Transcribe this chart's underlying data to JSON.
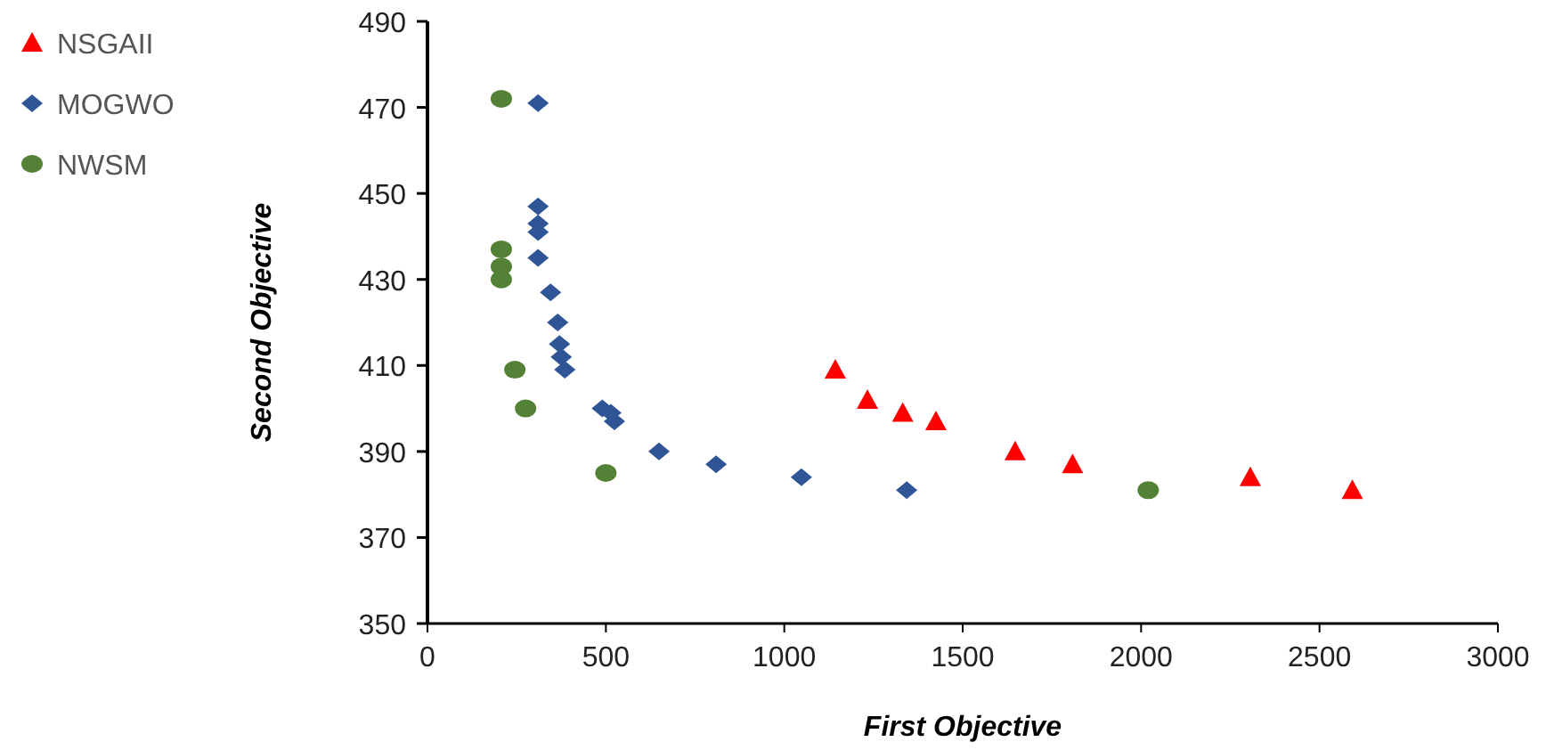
{
  "chart_data": {
    "type": "scatter",
    "xlabel": "First Objective",
    "ylabel": "Second Objective",
    "xlim": [
      0,
      3000
    ],
    "xticks": [
      0,
      500,
      1000,
      1500,
      2000,
      2500,
      3000
    ],
    "ylim": [
      350,
      490
    ],
    "yticks": [
      350,
      370,
      390,
      410,
      430,
      450,
      470,
      490
    ],
    "grid": false,
    "legend": "top left",
    "series": [
      {
        "name": "NSGAII",
        "color": "#ff0000",
        "marker": "triangle",
        "x": [
          1143,
          1233,
          1332,
          1425,
          1647,
          1808,
          2306,
          2592
        ],
        "values": [
          409,
          402,
          399,
          397,
          390,
          387,
          384,
          381
        ]
      },
      {
        "name": "MOGWO",
        "color": "#2f5597",
        "marker": "diamond",
        "x": [
          310,
          310,
          310,
          310,
          310,
          345,
          365,
          370,
          375,
          385,
          490,
          514,
          524,
          649,
          809,
          1048,
          1343
        ],
        "values": [
          471,
          447,
          443,
          441,
          435,
          427,
          420,
          415,
          412,
          409,
          400,
          399,
          397,
          390,
          387,
          384,
          381
        ]
      },
      {
        "name": "NWSM",
        "color": "#538135",
        "marker": "circle",
        "x": [
          207,
          207,
          207,
          207,
          245,
          275,
          500,
          2020
        ],
        "values": [
          472,
          437,
          433,
          430,
          409,
          400,
          385,
          381
        ]
      }
    ]
  }
}
